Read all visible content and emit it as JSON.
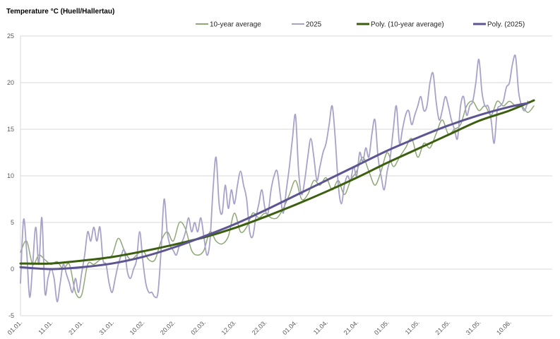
{
  "chart_data": {
    "type": "line",
    "title": "Temperature °C (Huell/Hallertau)",
    "xlabel": "",
    "ylabel": "",
    "ylim": [
      -5,
      25
    ],
    "y_ticks": [
      -5,
      0,
      5,
      10,
      15,
      20,
      25
    ],
    "x_range_days": [
      0,
      174
    ],
    "x_ticks": [
      {
        "day": 0,
        "label": "01.01."
      },
      {
        "day": 10,
        "label": "11.01."
      },
      {
        "day": 20,
        "label": "21.01."
      },
      {
        "day": 30,
        "label": "31.01."
      },
      {
        "day": 40,
        "label": "10.02."
      },
      {
        "day": 50,
        "label": "20.02."
      },
      {
        "day": 60,
        "label": "02.03."
      },
      {
        "day": 70,
        "label": "12.03."
      },
      {
        "day": 80,
        "label": "22.03."
      },
      {
        "day": 90,
        "label": "01.04."
      },
      {
        "day": 100,
        "label": "11.04."
      },
      {
        "day": 110,
        "label": "21.04."
      },
      {
        "day": 120,
        "label": "01.05."
      },
      {
        "day": 130,
        "label": "11.05."
      },
      {
        "day": 140,
        "label": "21.05."
      },
      {
        "day": 150,
        "label": "31.05."
      },
      {
        "day": 160,
        "label": "10.06."
      }
    ],
    "grid": true,
    "legend": "top",
    "series": [
      {
        "name": "10-year average",
        "color": "#8fa876",
        "width": 1.5,
        "kind": "raw",
        "points": [
          [
            0,
            1.8
          ],
          [
            2,
            3.0
          ],
          [
            4,
            0.5
          ],
          [
            6,
            1.5
          ],
          [
            8,
            1.0
          ],
          [
            10,
            0.5
          ],
          [
            12,
            0.8
          ],
          [
            14,
            0.0
          ],
          [
            16,
            0.5
          ],
          [
            18,
            -2.5
          ],
          [
            20,
            -2.8
          ],
          [
            22,
            0.5
          ],
          [
            24,
            0.5
          ],
          [
            26,
            1.0
          ],
          [
            28,
            1.2
          ],
          [
            30,
            1.5
          ],
          [
            32,
            3.3
          ],
          [
            34,
            2.0
          ],
          [
            36,
            1.0
          ],
          [
            38,
            1.5
          ],
          [
            40,
            2.0
          ],
          [
            42,
            1.0
          ],
          [
            44,
            1.0
          ],
          [
            46,
            3.0
          ],
          [
            48,
            4.0
          ],
          [
            50,
            3.0
          ],
          [
            52,
            5.0
          ],
          [
            54,
            4.3
          ],
          [
            56,
            2.0
          ],
          [
            58,
            1.5
          ],
          [
            60,
            2.0
          ],
          [
            62,
            4.0
          ],
          [
            64,
            3.0
          ],
          [
            66,
            2.7
          ],
          [
            68,
            3.5
          ],
          [
            70,
            6.0
          ],
          [
            72,
            4.0
          ],
          [
            74,
            4.5
          ],
          [
            76,
            6.0
          ],
          [
            78,
            5.5
          ],
          [
            80,
            6.0
          ],
          [
            82,
            5.5
          ],
          [
            84,
            5.5
          ],
          [
            86,
            6.5
          ],
          [
            88,
            8.0
          ],
          [
            90,
            9.5
          ],
          [
            92,
            7.5
          ],
          [
            94,
            8.0
          ],
          [
            96,
            9.5
          ],
          [
            98,
            9.0
          ],
          [
            100,
            9.8
          ],
          [
            102,
            8.5
          ],
          [
            104,
            9.5
          ],
          [
            106,
            8.0
          ],
          [
            108,
            9.5
          ],
          [
            110,
            10.5
          ],
          [
            112,
            12.0
          ],
          [
            114,
            10.5
          ],
          [
            116,
            9.0
          ],
          [
            118,
            10.5
          ],
          [
            120,
            12.5
          ],
          [
            122,
            11.0
          ],
          [
            124,
            12.0
          ],
          [
            126,
            13.0
          ],
          [
            128,
            14.0
          ],
          [
            130,
            12.0
          ],
          [
            132,
            13.5
          ],
          [
            134,
            13.0
          ],
          [
            136,
            14.5
          ],
          [
            138,
            16.0
          ],
          [
            140,
            14.5
          ],
          [
            142,
            15.0
          ],
          [
            144,
            15.5
          ],
          [
            146,
            17.5
          ],
          [
            148,
            18.0
          ],
          [
            150,
            17.0
          ],
          [
            152,
            17.5
          ],
          [
            154,
            16.5
          ],
          [
            156,
            18.0
          ],
          [
            158,
            17.5
          ],
          [
            160,
            18.0
          ],
          [
            162,
            17.5
          ],
          [
            164,
            17.5
          ],
          [
            166,
            16.8
          ],
          [
            168,
            17.5
          ]
        ]
      },
      {
        "name": "2025",
        "color": "#a7a2c7",
        "width": 1.8,
        "kind": "raw",
        "points": [
          [
            0,
            -1.5
          ],
          [
            1,
            5.3
          ],
          [
            2,
            2.0
          ],
          [
            3,
            -3.0
          ],
          [
            4,
            0.5
          ],
          [
            5,
            4.5
          ],
          [
            6,
            0.5
          ],
          [
            7,
            5.5
          ],
          [
            8,
            -2.5
          ],
          [
            9,
            -1.0
          ],
          [
            10,
            0.0
          ],
          [
            11,
            -1.0
          ],
          [
            12,
            -3.5
          ],
          [
            13,
            -1.5
          ],
          [
            14,
            0.5
          ],
          [
            15,
            -0.5
          ],
          [
            16,
            -1.5
          ],
          [
            17,
            -2.5
          ],
          [
            18,
            -1.0
          ],
          [
            19,
            -2.5
          ],
          [
            20,
            -0.5
          ],
          [
            21,
            1.5
          ],
          [
            22,
            4.0
          ],
          [
            23,
            3.0
          ],
          [
            24,
            4.5
          ],
          [
            25,
            3.0
          ],
          [
            26,
            4.5
          ],
          [
            27,
            1.0
          ],
          [
            28,
            0.5
          ],
          [
            29,
            -1.5
          ],
          [
            30,
            -2.5
          ],
          [
            31,
            -1.0
          ],
          [
            32,
            0.5
          ],
          [
            33,
            1.5
          ],
          [
            34,
            2.0
          ],
          [
            35,
            -0.3
          ],
          [
            36,
            -1.0
          ],
          [
            37,
            0.0
          ],
          [
            38,
            1.0
          ],
          [
            39,
            4.0
          ],
          [
            40,
            1.0
          ],
          [
            41,
            -1.5
          ],
          [
            42,
            -2.5
          ],
          [
            43,
            -2.5
          ],
          [
            44,
            -3.0
          ],
          [
            45,
            -2.5
          ],
          [
            46,
            2.0
          ],
          [
            47,
            7.5
          ],
          [
            48,
            4.0
          ],
          [
            49,
            2.5
          ],
          [
            50,
            2.0
          ],
          [
            51,
            1.5
          ],
          [
            52,
            2.5
          ],
          [
            53,
            3.0
          ],
          [
            54,
            4.0
          ],
          [
            55,
            5.5
          ],
          [
            56,
            4.0
          ],
          [
            57,
            5.0
          ],
          [
            58,
            4.0
          ],
          [
            59,
            5.5
          ],
          [
            60,
            3.5
          ],
          [
            61,
            1.5
          ],
          [
            62,
            3.0
          ],
          [
            63,
            8.5
          ],
          [
            64,
            12.0
          ],
          [
            65,
            7.0
          ],
          [
            66,
            6.0
          ],
          [
            67,
            9.0
          ],
          [
            68,
            6.5
          ],
          [
            69,
            8.5
          ],
          [
            70,
            7.0
          ],
          [
            71,
            9.0
          ],
          [
            72,
            10.5
          ],
          [
            73,
            9.0
          ],
          [
            74,
            7.5
          ],
          [
            75,
            4.0
          ],
          [
            76,
            3.5
          ],
          [
            77,
            5.5
          ],
          [
            78,
            7.0
          ],
          [
            79,
            8.5
          ],
          [
            80,
            6.5
          ],
          [
            81,
            6.0
          ],
          [
            82,
            8.5
          ],
          [
            83,
            10.0
          ],
          [
            84,
            10.5
          ],
          [
            85,
            8.0
          ],
          [
            86,
            6.0
          ],
          [
            87,
            8.5
          ],
          [
            88,
            11.0
          ],
          [
            89,
            14.0
          ],
          [
            90,
            16.5
          ],
          [
            91,
            10.5
          ],
          [
            92,
            8.0
          ],
          [
            93,
            9.5
          ],
          [
            94,
            12.0
          ],
          [
            95,
            14.0
          ],
          [
            96,
            12.0
          ],
          [
            97,
            9.5
          ],
          [
            98,
            11.0
          ],
          [
            99,
            12.5
          ],
          [
            100,
            13.5
          ],
          [
            101,
            15.5
          ],
          [
            102,
            17.5
          ],
          [
            103,
            14.0
          ],
          [
            104,
            9.0
          ],
          [
            105,
            7.0
          ],
          [
            106,
            9.0
          ],
          [
            107,
            10.0
          ],
          [
            108,
            9.5
          ],
          [
            109,
            11.0
          ],
          [
            110,
            10.0
          ],
          [
            111,
            12.5
          ],
          [
            112,
            11.5
          ],
          [
            113,
            13.0
          ],
          [
            114,
            12.0
          ],
          [
            115,
            14.5
          ],
          [
            116,
            16.0
          ],
          [
            117,
            12.0
          ],
          [
            118,
            10.0
          ],
          [
            119,
            8.5
          ],
          [
            120,
            10.5
          ],
          [
            121,
            12.0
          ],
          [
            122,
            15.0
          ],
          [
            123,
            17.5
          ],
          [
            124,
            13.5
          ],
          [
            125,
            15.0
          ],
          [
            126,
            16.5
          ],
          [
            127,
            17.0
          ],
          [
            128,
            15.5
          ],
          [
            129,
            16.5
          ],
          [
            130,
            17.5
          ],
          [
            131,
            18.5
          ],
          [
            132,
            17.0
          ],
          [
            133,
            17.5
          ],
          [
            134,
            20.0
          ],
          [
            135,
            21.0
          ],
          [
            136,
            18.0
          ],
          [
            137,
            16.0
          ],
          [
            138,
            17.0
          ],
          [
            139,
            18.5
          ],
          [
            140,
            17.5
          ],
          [
            141,
            16.0
          ],
          [
            142,
            15.0
          ],
          [
            143,
            14.0
          ],
          [
            144,
            17.5
          ],
          [
            145,
            18.5
          ],
          [
            146,
            16.5
          ],
          [
            147,
            17.5
          ],
          [
            148,
            18.0
          ],
          [
            149,
            20.0
          ],
          [
            150,
            22.5
          ],
          [
            151,
            19.0
          ],
          [
            152,
            17.5
          ],
          [
            153,
            17.5
          ],
          [
            154,
            16.0
          ],
          [
            155,
            13.5
          ],
          [
            156,
            17.0
          ],
          [
            157,
            17.5
          ],
          [
            158,
            18.0
          ],
          [
            159,
            19.5
          ],
          [
            160,
            20.0
          ],
          [
            161,
            22.0
          ],
          [
            162,
            22.8
          ],
          [
            163,
            19.0
          ],
          [
            164,
            17.5
          ],
          [
            165,
            17.0
          ],
          [
            166,
            18.0
          ]
        ]
      },
      {
        "name": "Poly. (10-year average)",
        "color": "#3b5e0f",
        "width": 3,
        "kind": "trend",
        "points": [
          [
            0,
            0.6
          ],
          [
            10,
            0.6
          ],
          [
            20,
            0.9
          ],
          [
            30,
            1.3
          ],
          [
            40,
            1.9
          ],
          [
            50,
            2.6
          ],
          [
            60,
            3.4
          ],
          [
            70,
            4.4
          ],
          [
            80,
            5.6
          ],
          [
            90,
            6.9
          ],
          [
            100,
            8.3
          ],
          [
            110,
            9.8
          ],
          [
            120,
            11.4
          ],
          [
            130,
            12.9
          ],
          [
            140,
            14.4
          ],
          [
            150,
            15.9
          ],
          [
            160,
            17.0
          ],
          [
            168,
            18.1
          ]
        ]
      },
      {
        "name": "Poly. (2025)",
        "color": "#5c5592",
        "width": 3,
        "kind": "trend",
        "points": [
          [
            0,
            0.2
          ],
          [
            10,
            0.0
          ],
          [
            20,
            0.2
          ],
          [
            30,
            0.6
          ],
          [
            40,
            1.3
          ],
          [
            50,
            2.3
          ],
          [
            60,
            3.5
          ],
          [
            70,
            4.8
          ],
          [
            80,
            6.3
          ],
          [
            90,
            7.9
          ],
          [
            100,
            9.5
          ],
          [
            110,
            11.1
          ],
          [
            120,
            12.7
          ],
          [
            130,
            14.1
          ],
          [
            140,
            15.4
          ],
          [
            150,
            16.5
          ],
          [
            160,
            17.4
          ],
          [
            166,
            17.8
          ]
        ]
      }
    ]
  }
}
